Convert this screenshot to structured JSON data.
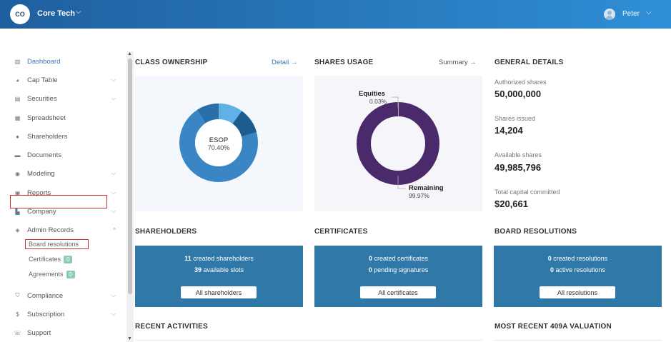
{
  "topbar": {
    "company_initials": "CO",
    "company_name": "Core Tech",
    "user_name": "Peter"
  },
  "sidebar": {
    "items": [
      {
        "label": "Dashboard",
        "icon": "dashboard-icon"
      },
      {
        "label": "Cap Table",
        "icon": "pie-chart-icon"
      },
      {
        "label": "Securities",
        "icon": "clipboard-icon"
      },
      {
        "label": "Spreadsheet",
        "icon": "spreadsheet-icon"
      },
      {
        "label": "Shareholders",
        "icon": "person-icon"
      },
      {
        "label": "Documents",
        "icon": "folder-icon"
      },
      {
        "label": "Modeling",
        "icon": "bulb-icon"
      },
      {
        "label": "Reports",
        "icon": "report-icon"
      },
      {
        "label": "Company",
        "icon": "building-icon"
      },
      {
        "label": "Admin Records",
        "icon": "records-icon"
      },
      {
        "label": "Compliance",
        "icon": "shield-icon"
      },
      {
        "label": "Subscription",
        "icon": "dollar-icon"
      },
      {
        "label": "Support",
        "icon": "support-icon"
      }
    ],
    "admin_sub": {
      "board_resolutions": "Board resolutions",
      "certificates": "Certificates",
      "certificates_count": "0",
      "agreements": "Agreements",
      "agreements_count": "0"
    }
  },
  "class_ownership": {
    "title": "CLASS OWNERSHIP",
    "link": "Detail →",
    "center_label": "ESOP",
    "center_value": "70.40%"
  },
  "shares_usage": {
    "title": "SHARES USAGE",
    "link": "Summary →",
    "equities_label": "Equities",
    "equities_value": "0.03%",
    "remaining_label": "Remaining",
    "remaining_value": "99.97%"
  },
  "general_details": {
    "title": "GENERAL DETAILS",
    "authorized_label": "Authorized shares",
    "authorized_value": "50,000,000",
    "issued_label": "Shares issued",
    "issued_value": "14,204",
    "available_label": "Available shares",
    "available_value": "49,985,796",
    "capital_label": "Total capital committed",
    "capital_value": "$20,661"
  },
  "shareholders": {
    "title": "SHAREHOLDERS",
    "line1_num": "11",
    "line1_text": "created shareholders",
    "line2_num": "39",
    "line2_text": "available slots",
    "button": "All shareholders"
  },
  "certificates": {
    "title": "CERTIFICATES",
    "line1_num": "0",
    "line1_text": "created certificates",
    "line2_num": "0",
    "line2_text": "pending signatures",
    "button": "All certificates"
  },
  "board_resolutions": {
    "title": "BOARD RESOLUTIONS",
    "line1_num": "0",
    "line1_text": "created resolutions",
    "line2_num": "0",
    "line2_text": "active resolutions",
    "button": "All resolutions"
  },
  "recent_activities": {
    "title": "RECENT ACTIVITIES"
  },
  "valuation": {
    "title": "MOST RECENT 409A VALUATION"
  },
  "colors": {
    "accent": "#3a78b4",
    "card_blue": "#2f78a8",
    "donut_primary": "#3a86c4",
    "donut_purple": "#4a2a6a",
    "highlight_red": "#c9303a"
  }
}
